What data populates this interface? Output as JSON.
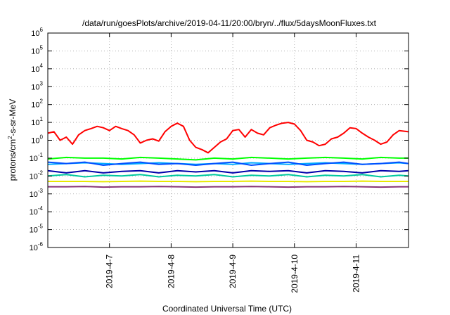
{
  "chart_data": {
    "type": "line",
    "title": "/data/run/goesPlots/archive/2019-04-11/20:00/bryn/../flux/5daysMoonFluxes.txt",
    "xlabel": "Coordinated Universal Time (UTC)",
    "ylabel_base": "protons/cm",
    "ylabel_sup": "2",
    "ylabel_rest": "-s-sr-MeV",
    "y_scale": "log",
    "ylim": [
      1e-06,
      1000000.0
    ],
    "y_ticks": [
      {
        "base": "10",
        "exp": "-6",
        "value": -6
      },
      {
        "base": "10",
        "exp": "-5",
        "value": -5
      },
      {
        "base": "10",
        "exp": "-4",
        "value": -4
      },
      {
        "base": "10",
        "exp": "-3",
        "value": -3
      },
      {
        "base": "10",
        "exp": "-2",
        "value": -2
      },
      {
        "base": "10",
        "exp": "-1",
        "value": -1
      },
      {
        "base": "10",
        "exp": "0",
        "value": 0
      },
      {
        "base": "10",
        "exp": "1",
        "value": 1
      },
      {
        "base": "10",
        "exp": "2",
        "value": 2
      },
      {
        "base": "10",
        "exp": "3",
        "value": 3
      },
      {
        "base": "10",
        "exp": "4",
        "value": 4
      },
      {
        "base": "10",
        "exp": "5",
        "value": 5
      },
      {
        "base": "10",
        "exp": "6",
        "value": 6
      }
    ],
    "xlim": [
      0,
      5.85
    ],
    "x_ticks": [
      {
        "label": "2019-4-7",
        "value": 1
      },
      {
        "label": "2019-4-8",
        "value": 2
      },
      {
        "label": "2019-4-9",
        "value": 3
      },
      {
        "label": "2019-4-10",
        "value": 4
      },
      {
        "label": "2019-4-11",
        "value": 5
      }
    ],
    "grid": true,
    "legend": "none",
    "series": [
      {
        "color": "#ff0000",
        "x": [
          0,
          0.1,
          0.2,
          0.3,
          0.4,
          0.5,
          0.6,
          0.7,
          0.8,
          0.9,
          1.0,
          1.1,
          1.2,
          1.3,
          1.4,
          1.5,
          1.6,
          1.7,
          1.8,
          1.9,
          2.0,
          2.1,
          2.2,
          2.3,
          2.4,
          2.5,
          2.6,
          2.7,
          2.8,
          2.9,
          3.0,
          3.1,
          3.2,
          3.3,
          3.4,
          3.5,
          3.6,
          3.7,
          3.8,
          3.9,
          4.0,
          4.1,
          4.2,
          4.3,
          4.4,
          4.5,
          4.6,
          4.7,
          4.8,
          4.9,
          5.0,
          5.1,
          5.2,
          5.3,
          5.4,
          5.5,
          5.6,
          5.7,
          5.85
        ],
        "values": [
          2.5,
          3.0,
          1.0,
          1.5,
          0.6,
          2.0,
          3.5,
          4.5,
          6.0,
          5.0,
          3.5,
          6.0,
          4.5,
          3.5,
          2.0,
          0.7,
          1.0,
          1.2,
          0.9,
          3.0,
          6.0,
          9.0,
          6.0,
          1.0,
          0.4,
          0.3,
          0.2,
          0.4,
          0.8,
          1.2,
          3.5,
          4.0,
          1.5,
          4.0,
          2.5,
          2.0,
          5.0,
          7.0,
          9.0,
          10.0,
          8.0,
          3.5,
          1.0,
          0.8,
          0.5,
          0.6,
          1.2,
          1.5,
          2.5,
          5.0,
          4.5,
          2.5,
          1.5,
          1.0,
          0.6,
          0.8,
          2.0,
          3.5,
          3.0
        ]
      },
      {
        "color": "#00ff00",
        "x": [
          0,
          0.3,
          0.6,
          0.9,
          1.2,
          1.5,
          1.8,
          2.1,
          2.4,
          2.7,
          3.0,
          3.3,
          3.6,
          3.9,
          4.2,
          4.5,
          4.8,
          5.1,
          5.4,
          5.7,
          5.85
        ],
        "values": [
          0.09,
          0.11,
          0.1,
          0.1,
          0.09,
          0.11,
          0.1,
          0.09,
          0.08,
          0.1,
          0.09,
          0.11,
          0.1,
          0.09,
          0.1,
          0.11,
          0.1,
          0.09,
          0.11,
          0.1,
          0.1
        ]
      },
      {
        "color": "#00aaff",
        "x": [
          0,
          0.3,
          0.6,
          0.9,
          1.2,
          1.5,
          1.8,
          2.1,
          2.4,
          2.7,
          3.0,
          3.3,
          3.6,
          3.9,
          4.2,
          4.5,
          4.8,
          5.1,
          5.4,
          5.7,
          5.85
        ],
        "values": [
          0.045,
          0.05,
          0.055,
          0.05,
          0.045,
          0.05,
          0.055,
          0.05,
          0.045,
          0.05,
          0.045,
          0.055,
          0.05,
          0.045,
          0.05,
          0.055,
          0.05,
          0.045,
          0.05,
          0.055,
          0.05
        ]
      },
      {
        "color": "#0050ff",
        "x": [
          0,
          0.3,
          0.6,
          0.9,
          1.2,
          1.5,
          1.8,
          2.1,
          2.4,
          2.7,
          3.0,
          3.3,
          3.6,
          3.9,
          4.2,
          4.5,
          4.8,
          5.1,
          5.4,
          5.7,
          5.85
        ],
        "values": [
          0.06,
          0.05,
          0.06,
          0.04,
          0.05,
          0.06,
          0.045,
          0.05,
          0.04,
          0.05,
          0.06,
          0.04,
          0.05,
          0.06,
          0.04,
          0.05,
          0.06,
          0.045,
          0.05,
          0.06,
          0.05
        ]
      },
      {
        "color": "#0000aa",
        "x": [
          0,
          0.3,
          0.6,
          0.9,
          1.2,
          1.5,
          1.8,
          2.1,
          2.4,
          2.7,
          3.0,
          3.3,
          3.6,
          3.9,
          4.2,
          4.5,
          4.8,
          5.1,
          5.4,
          5.7,
          5.85
        ],
        "values": [
          0.02,
          0.015,
          0.02,
          0.015,
          0.018,
          0.02,
          0.015,
          0.02,
          0.017,
          0.02,
          0.015,
          0.02,
          0.018,
          0.02,
          0.015,
          0.02,
          0.018,
          0.015,
          0.02,
          0.018,
          0.02
        ]
      },
      {
        "color": "#00c8a0",
        "x": [
          0,
          0.3,
          0.6,
          0.9,
          1.2,
          1.5,
          1.8,
          2.1,
          2.4,
          2.7,
          3.0,
          3.3,
          3.6,
          3.9,
          4.2,
          4.5,
          4.8,
          5.1,
          5.4,
          5.7,
          5.85
        ],
        "values": [
          0.01,
          0.012,
          0.009,
          0.011,
          0.01,
          0.012,
          0.009,
          0.011,
          0.01,
          0.012,
          0.009,
          0.011,
          0.01,
          0.012,
          0.009,
          0.011,
          0.01,
          0.012,
          0.009,
          0.011,
          0.01
        ]
      },
      {
        "color": "#e8e800",
        "x": [
          0,
          0.3,
          0.6,
          0.9,
          1.2,
          1.5,
          1.8,
          2.1,
          2.4,
          2.7,
          3.0,
          3.3,
          3.6,
          3.9,
          4.2,
          4.5,
          4.8,
          5.1,
          5.4,
          5.7,
          5.85
        ],
        "values": [
          0.005,
          0.005,
          0.005,
          0.0048,
          0.005,
          0.0052,
          0.005,
          0.005,
          0.0048,
          0.005,
          0.005,
          0.0052,
          0.005,
          0.005,
          0.0048,
          0.005,
          0.005,
          0.0052,
          0.005,
          0.005,
          0.005
        ]
      },
      {
        "color": "#883377",
        "x": [
          0,
          0.3,
          0.6,
          0.9,
          1.2,
          1.5,
          1.8,
          2.1,
          2.4,
          2.7,
          3.0,
          3.3,
          3.6,
          3.9,
          4.2,
          4.5,
          4.8,
          5.1,
          5.4,
          5.7,
          5.85
        ],
        "values": [
          0.0025,
          0.0025,
          0.0026,
          0.0024,
          0.0025,
          0.0025,
          0.0026,
          0.0025,
          0.0024,
          0.0025,
          0.0025,
          0.0026,
          0.0025,
          0.0024,
          0.0025,
          0.0025,
          0.0026,
          0.0025,
          0.0024,
          0.0025,
          0.0025
        ]
      }
    ]
  }
}
